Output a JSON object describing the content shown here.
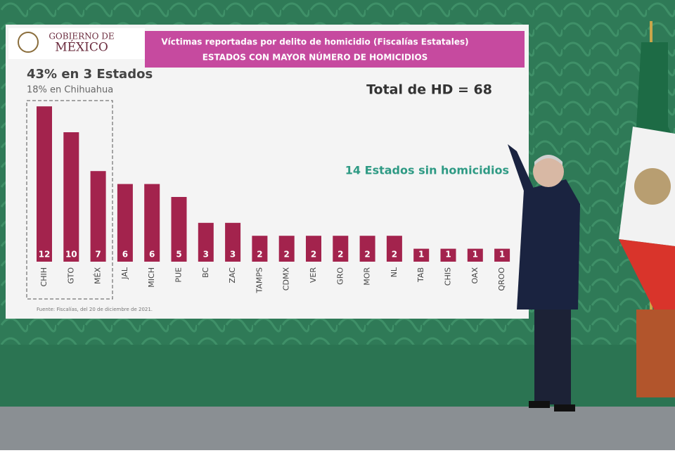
{
  "header": {
    "logo_line1": "GOBIERNO DE",
    "logo_line2": "MÉXICO"
  },
  "chart_data": {
    "type": "bar",
    "title": "Víctimas reportadas por delito de homicidio (Fiscalías Estatales)",
    "subtitle": "ESTADOS CON MAYOR NÚMERO DE HOMICIDIOS",
    "highlight": "43% en 3 Estados",
    "highlight_note": "18% en Chihuahua",
    "total": "Total de HD = 68",
    "note": "14 Estados sin homicidios",
    "source": "Fuente: Fiscalías, del 20 de diciembre de 2021.",
    "categories": [
      "CHIH",
      "GTO",
      "MÉX",
      "JAL",
      "MICH",
      "PUE",
      "BC",
      "ZAC",
      "TAMPS",
      "CDMX",
      "VER",
      "GRO",
      "MOR",
      "NL",
      "TAB",
      "CHIS",
      "OAX",
      "QROO"
    ],
    "values": [
      12,
      10,
      7,
      6,
      6,
      5,
      3,
      3,
      2,
      2,
      2,
      2,
      2,
      2,
      1,
      1,
      1,
      1
    ],
    "color": "#a3234d"
  }
}
